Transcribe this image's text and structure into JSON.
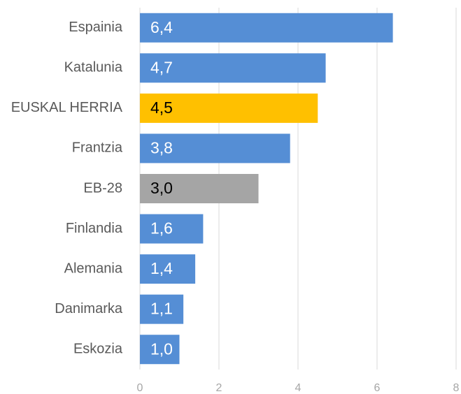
{
  "chart_data": {
    "type": "hbar",
    "categories": [
      "Espainia",
      "Katalunia",
      "EUSKAL HERRIA",
      "Frantzia",
      "EB-28",
      "Finlandia",
      "Alemania",
      "Danimarka",
      "Eskozia"
    ],
    "values": [
      6.4,
      4.7,
      4.5,
      3.8,
      3.0,
      1.6,
      1.4,
      1.1,
      1.0
    ],
    "value_labels": [
      "6,4",
      "4,7",
      "4,5",
      "3,8",
      "3,0",
      "1,6",
      "1,4",
      "1,1",
      "1,0"
    ],
    "colors": [
      "#558ed5",
      "#558ed5",
      "#ffc000",
      "#558ed5",
      "#a5a5a5",
      "#558ed5",
      "#558ed5",
      "#558ed5",
      "#558ed5"
    ],
    "value_label_colors": [
      "#ffffff",
      "#ffffff",
      "#000000",
      "#ffffff",
      "#000000",
      "#ffffff",
      "#ffffff",
      "#ffffff",
      "#ffffff"
    ],
    "xlim": [
      0,
      8
    ],
    "xticks": [
      0,
      2,
      4,
      6,
      8
    ],
    "grid": true
  }
}
